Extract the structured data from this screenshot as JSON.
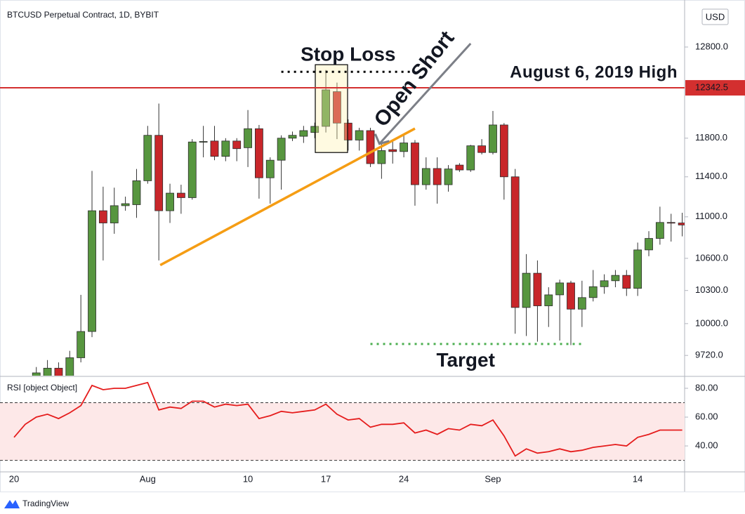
{
  "header": {
    "title": "BTCUSD Perpetual Contract, 1D, BYBIT",
    "currency": "USD"
  },
  "chart_data": [
    {
      "type": "candlestick",
      "categories": [
        "20",
        null,
        null,
        null,
        null,
        null,
        null,
        null,
        null,
        null,
        null,
        null,
        "Aug",
        null,
        null,
        null,
        null,
        null,
        null,
        null,
        null,
        "10",
        null,
        null,
        null,
        null,
        null,
        null,
        "17",
        null,
        null,
        null,
        null,
        null,
        null,
        "24",
        null,
        null,
        null,
        null,
        null,
        null,
        null,
        "Sep",
        null,
        null,
        null,
        null,
        null,
        null,
        null,
        null,
        null,
        null,
        null,
        null,
        "14",
        null,
        null,
        null,
        null
      ],
      "open": [
        null,
        null,
        9500,
        9500,
        9610,
        9540,
        9700,
        9930,
        11060,
        10940,
        11110,
        11120,
        11360,
        11830,
        11060,
        11235,
        11190,
        11760,
        11770,
        11610,
        11770,
        11700,
        11900,
        11390,
        11570,
        11800,
        11820,
        11860,
        11925,
        12300,
        11960,
        11780,
        11880,
        11535,
        11680,
        11660,
        11750,
        11320,
        11485,
        11320,
        11520,
        11470,
        11720,
        11650,
        11940,
        11400,
        10145,
        10460,
        10160,
        10260,
        10370,
        10130,
        10235,
        10335,
        10390,
        10440,
        10320,
        10680,
        10790,
        10945,
        10940
      ],
      "high": [
        null,
        null,
        9620,
        9680,
        9660,
        9760,
        10260,
        11460,
        11300,
        11290,
        11200,
        11480,
        11930,
        12170,
        11330,
        11320,
        11790,
        11930,
        11930,
        11800,
        11800,
        12100,
        11940,
        11600,
        11830,
        11870,
        11930,
        11965,
        12540,
        12400,
        12000,
        11910,
        11910,
        11740,
        11780,
        11830,
        11780,
        11600,
        11600,
        11520,
        11540,
        11730,
        11790,
        12090,
        11960,
        11480,
        10640,
        10580,
        10330,
        10400,
        10390,
        10390,
        10490,
        10450,
        10490,
        10490,
        10750,
        10860,
        11100,
        11030,
        11040
      ],
      "low": [
        null,
        null,
        9400,
        9450,
        9450,
        9450,
        9660,
        9880,
        10580,
        10835,
        11060,
        10990,
        11330,
        10580,
        10940,
        11030,
        11170,
        11600,
        11570,
        11560,
        11560,
        11500,
        11180,
        11130,
        11270,
        11770,
        11750,
        11800,
        11860,
        11790,
        11670,
        11670,
        11500,
        11380,
        11535,
        11600,
        11110,
        11270,
        11130,
        11250,
        11450,
        11450,
        11630,
        11630,
        11170,
        9910,
        9890,
        9840,
        9970,
        9850,
        9810,
        9970,
        10200,
        10270,
        10330,
        10250,
        10250,
        10620,
        10730,
        10760,
        10810
      ],
      "close": [
        null,
        null,
        9570,
        9610,
        9520,
        9700,
        9930,
        11060,
        10940,
        11110,
        11130,
        11360,
        11830,
        11060,
        11235,
        11190,
        11760,
        11765,
        11610,
        11770,
        11690,
        11900,
        11390,
        11570,
        11800,
        11830,
        11880,
        11925,
        12320,
        11960,
        11780,
        11880,
        11535,
        11670,
        11660,
        11750,
        11320,
        11485,
        11320,
        11480,
        11470,
        11720,
        11650,
        11940,
        11400,
        10145,
        10460,
        10160,
        10260,
        10370,
        10130,
        10235,
        10335,
        10390,
        10440,
        10320,
        10680,
        10790,
        10945,
        10940,
        10920
      ],
      "up_color": "#57963f",
      "down_color": "#c8262a",
      "log_scale": true,
      "ylim": [
        9546,
        13282
      ],
      "yticks": [
        {
          "value": 12800,
          "label": "12800.0"
        },
        {
          "value": 11800,
          "label": "11800.0"
        },
        {
          "value": 11400,
          "label": "11400.0"
        },
        {
          "value": 11000,
          "label": "11000.0"
        },
        {
          "value": 10600,
          "label": "10600.0"
        },
        {
          "value": 10300,
          "label": "10300.0"
        },
        {
          "value": 10000,
          "label": "10000.0"
        },
        {
          "value": 9720,
          "label": "9720.0"
        }
      ],
      "annotations": {
        "high_line": {
          "value": 12342.5,
          "text": "August 6, 2019 High",
          "color": "#d32f2f"
        },
        "stop_loss": {
          "text": "Stop Loss",
          "value": 12520,
          "from": 24,
          "to": 36
        },
        "box": {
          "from": 28,
          "to": 29,
          "top": 12600,
          "bottom": 11650
        },
        "trendline": {
          "from": 13,
          "to": 36,
          "start": 10536,
          "end": 11902,
          "color": "#f59d14"
        },
        "open_short": {
          "text": "Open Short",
          "from": 33,
          "to": 41,
          "start": 11741,
          "end": 12840,
          "color": "#7c7f87"
        },
        "target": {
          "text": "Target",
          "value": 9820,
          "from": 32,
          "to": 51,
          "color": "#4caf50"
        }
      }
    },
    {
      "type": "line",
      "title": "RSI [object Object]",
      "values": [
        46,
        55,
        60,
        62,
        59,
        63,
        68,
        82,
        79,
        80,
        80,
        82,
        84,
        65,
        67,
        66,
        71,
        71,
        67,
        69,
        68,
        69,
        59,
        61,
        64,
        63,
        64,
        65,
        69,
        62,
        58,
        59,
        53,
        55,
        55,
        56,
        49,
        51,
        48,
        52,
        51,
        55,
        54,
        58,
        47,
        33,
        38,
        35,
        36,
        38,
        36,
        37,
        39,
        40,
        41,
        40,
        46,
        48,
        51,
        51,
        51
      ],
      "color": "#e51c1c",
      "ylim": [
        22,
        87.3
      ],
      "yticks": [
        {
          "value": 80,
          "label": "80.00"
        },
        {
          "value": 60,
          "label": "60.00"
        },
        {
          "value": 40,
          "label": "40.00"
        }
      ],
      "levels": [
        70,
        30
      ],
      "band_color": "#fde8e8"
    }
  ],
  "footer": {
    "brand": "TradingView"
  }
}
